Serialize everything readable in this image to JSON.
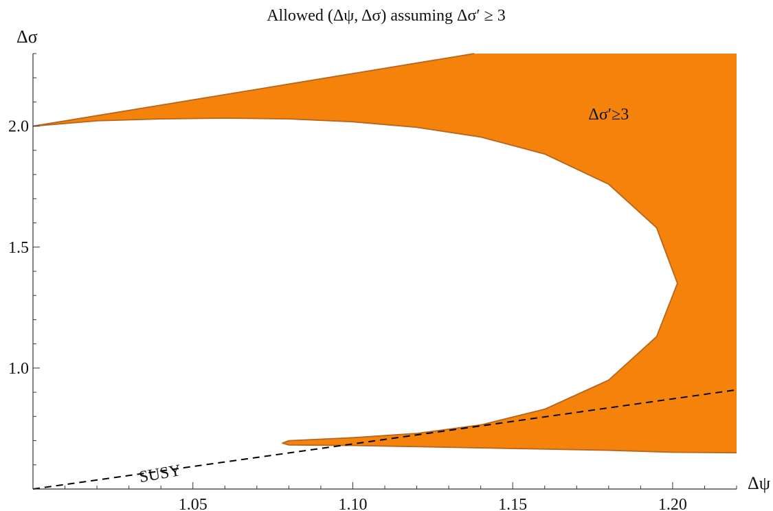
{
  "chart_data": {
    "type": "area",
    "title": "Allowed (Δψ, Δσ) assuming Δσ′ ≥ 3",
    "xlabel": "Δψ",
    "ylabel": "Δσ",
    "xlim": [
      1.0,
      1.22
    ],
    "ylim": [
      0.5,
      2.3
    ],
    "x_ticks": [
      1.05,
      1.1,
      1.15,
      1.2
    ],
    "x_tick_labels": [
      "1.05",
      "1.10",
      "1.15",
      "1.20"
    ],
    "y_ticks": [
      1.0,
      1.5,
      2.0
    ],
    "y_tick_labels": [
      "1.0",
      "1.5",
      "2.0"
    ],
    "grid": false,
    "region": {
      "name": "Δσ′≥3",
      "color": "#f5820b",
      "edge_color": "#b5651d",
      "outer_upper_line": [
        [
          1.0,
          2.0
        ],
        [
          1.138,
          2.3
        ]
      ],
      "inner_boundary": [
        [
          1.0,
          2.0
        ],
        [
          1.02,
          2.022
        ],
        [
          1.04,
          2.03
        ],
        [
          1.06,
          2.033
        ],
        [
          1.08,
          2.03
        ],
        [
          1.1,
          2.018
        ],
        [
          1.12,
          1.995
        ],
        [
          1.14,
          1.955
        ],
        [
          1.16,
          1.885
        ],
        [
          1.18,
          1.76
        ],
        [
          1.195,
          1.58
        ],
        [
          1.2015,
          1.35
        ],
        [
          1.195,
          1.13
        ],
        [
          1.18,
          0.95
        ],
        [
          1.16,
          0.83
        ],
        [
          1.14,
          0.765
        ],
        [
          1.12,
          0.73
        ],
        [
          1.1,
          0.712
        ],
        [
          1.08,
          0.7
        ],
        [
          1.078,
          0.69
        ],
        [
          1.08,
          0.682
        ],
        [
          1.1,
          0.68
        ],
        [
          1.14,
          0.67
        ],
        [
          1.18,
          0.66
        ],
        [
          1.2,
          0.652
        ],
        [
          1.22,
          0.65
        ]
      ],
      "right_edge": [
        [
          1.22,
          0.65
        ],
        [
          1.22,
          2.3
        ]
      ],
      "top_edge": [
        [
          1.138,
          2.3
        ],
        [
          1.22,
          2.3
        ]
      ]
    },
    "series": [
      {
        "name": "SUSY",
        "style": "dashed",
        "color": "#000000",
        "x": [
          1.0,
          1.22
        ],
        "y": [
          0.5,
          0.91
        ]
      }
    ],
    "annotations": [
      {
        "text": "Δσ′≥3",
        "x": 1.18,
        "y": 2.05
      },
      {
        "text": "SUSY",
        "x": 1.04,
        "y": 0.565
      }
    ]
  }
}
